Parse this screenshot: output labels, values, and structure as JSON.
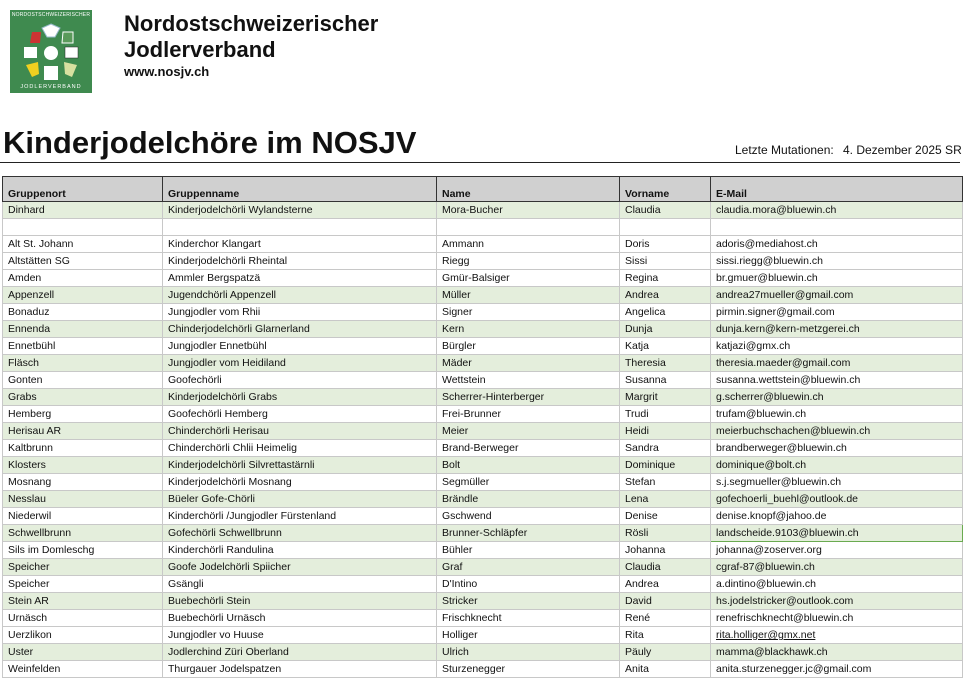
{
  "header": {
    "logo_text_top": "NORDOSTSCHWEIZERISCHER",
    "logo_text_bottom": "JODLERVERBAND",
    "org_line1": "Nordostschweizerischer",
    "org_line2": "Jodlerverband",
    "website": "www.nosjv.ch",
    "logo_color": "#3f8a4f"
  },
  "title": "Kinderjodelchöre im NOSJV",
  "mutation_label": "Letzte Mutationen:",
  "mutation_date": "4. Dezember 2025 SR",
  "row_highlight_color": "#e4eedc",
  "table": {
    "columns": [
      "Gruppenort",
      "Gruppenname",
      "Name",
      "Vorname",
      "E-Mail"
    ],
    "rows": [
      {
        "cells": [
          "Dinhard",
          "Kinderjodelchörli Wylandsterne",
          "Mora-Bucher",
          "Claudia",
          "claudia.mora@bluewin.ch"
        ],
        "highlight": true
      },
      {
        "cells": [
          "",
          "",
          "",
          "",
          ""
        ],
        "highlight": false
      },
      {
        "cells": [
          "Alt St. Johann",
          "Kinderchor Klangart",
          "Ammann",
          "Doris",
          "adoris@mediahost.ch"
        ],
        "highlight": false
      },
      {
        "cells": [
          "Altstätten SG",
          "Kinderjodelchörli Rheintal",
          "Riegg",
          "Sissi",
          "sissi.riegg@bluewin.ch"
        ],
        "highlight": false
      },
      {
        "cells": [
          "Amden",
          "Ammler Bergspatzä",
          "Gmür-Balsiger",
          "Regina",
          "br.gmuer@bluewin.ch"
        ],
        "highlight": false
      },
      {
        "cells": [
          "Appenzell",
          "Jugendchörli Appenzell",
          "Müller",
          "Andrea",
          "andrea27mueller@gmail.com"
        ],
        "highlight": true
      },
      {
        "cells": [
          "Bonaduz",
          "Jungjodler vom Rhii",
          "Signer",
          "Angelica",
          "pirmin.signer@gmail.com"
        ],
        "highlight": false
      },
      {
        "cells": [
          "Ennenda",
          "Chinderjodelchörli Glarnerland",
          "Kern",
          "Dunja",
          "dunja.kern@kern-metzgerei.ch"
        ],
        "highlight": true
      },
      {
        "cells": [
          "Ennetbühl",
          "Jungjodler Ennetbühl",
          "Bürgler",
          "Katja",
          "katjazi@gmx.ch"
        ],
        "highlight": false
      },
      {
        "cells": [
          "Fläsch",
          "Jungjodler vom Heidiland",
          "Mäder",
          "Theresia",
          "theresia.maeder@gmail.com"
        ],
        "highlight": true
      },
      {
        "cells": [
          "Gonten",
          "Goofechörli",
          "Wettstein",
          "Susanna",
          "susanna.wettstein@bluewin.ch"
        ],
        "highlight": false
      },
      {
        "cells": [
          "Grabs",
          "Kinderjodelchörli Grabs",
          "Scherrer-Hinterberger",
          "Margrit",
          "g.scherrer@bluewin.ch"
        ],
        "highlight": true
      },
      {
        "cells": [
          "Hemberg",
          "Goofechörli Hemberg",
          "Frei-Brunner",
          "Trudi",
          "trufam@bluewin.ch"
        ],
        "highlight": false
      },
      {
        "cells": [
          "Herisau AR",
          "Chinderchörli Herisau",
          "Meier",
          "Heidi",
          "meierbuchschachen@bluewin.ch"
        ],
        "highlight": true
      },
      {
        "cells": [
          "Kaltbrunn",
          "Chinderchörli Chlii Heimelig",
          "Brand-Berweger",
          "Sandra",
          "brandberweger@bluewin.ch"
        ],
        "highlight": false
      },
      {
        "cells": [
          "Klosters",
          "Kinderjodelchörli Silvrettastärnli",
          "Bolt",
          "Dominique",
          "dominique@bolt.ch"
        ],
        "highlight": true
      },
      {
        "cells": [
          "Mosnang",
          "Kinderjodelchörli Mosnang",
          "Segmüller",
          "Stefan",
          "s.j.segmueller@bluewin.ch"
        ],
        "highlight": false
      },
      {
        "cells": [
          "Nesslau",
          "Büeler Gofe-Chörli",
          "Brändle",
          "Lena",
          "gofechoerli_buehl@outlook.de"
        ],
        "highlight": true
      },
      {
        "cells": [
          "Niederwil",
          "Kinderchörli /Jungjodler Fürstenland",
          "Gschwend",
          "Denise",
          "denise.knopf@jahoo.de"
        ],
        "highlight": false
      },
      {
        "cells": [
          "Schwellbrunn",
          "Gofechörli Schwellbrunn",
          "Brunner-Schläpfer",
          "Rösli",
          "landscheide.9103@bluewin.ch"
        ],
        "highlight": true
      },
      {
        "cells": [
          "Sils im Domleschg",
          "Kinderchörli Randulina",
          "Bühler",
          "Johanna",
          "johanna@zoserver.org"
        ],
        "highlight": false
      },
      {
        "cells": [
          "Speicher",
          "Goofe Jodelchörli Spiicher",
          "Graf",
          "Claudia",
          "cgraf-87@bluewin.ch"
        ],
        "highlight": true
      },
      {
        "cells": [
          "Speicher",
          "Gsängli",
          "D'Intino",
          "Andrea",
          "a.dintino@bluewin.ch"
        ],
        "highlight": false
      },
      {
        "cells": [
          "Stein AR",
          "Buebechörli Stein",
          "Stricker",
          "David",
          "hs.jodelstricker@outlook.com"
        ],
        "highlight": true
      },
      {
        "cells": [
          "Urnäsch",
          "Buebechörli Urnäsch",
          "Frischknecht",
          "René",
          "renefrischknecht@bluewin.ch"
        ],
        "highlight": false
      },
      {
        "cells": [
          "Uerzlikon",
          "Jungjodler vo Huuse",
          "Holliger",
          "Rita",
          "rita.holliger@gmx.net"
        ],
        "highlight": false,
        "email_link": true
      },
      {
        "cells": [
          "Uster",
          "Jodlerchind Züri Oberland",
          "Ulrich",
          "Päuly",
          "mamma@blackhawk.ch"
        ],
        "highlight": true
      },
      {
        "cells": [
          "Weinfelden",
          "Thurgauer Jodelspatzen",
          "Sturzenegger",
          "Anita",
          "anita.sturzenegger.jc@gmail.com"
        ],
        "highlight": false
      }
    ]
  }
}
